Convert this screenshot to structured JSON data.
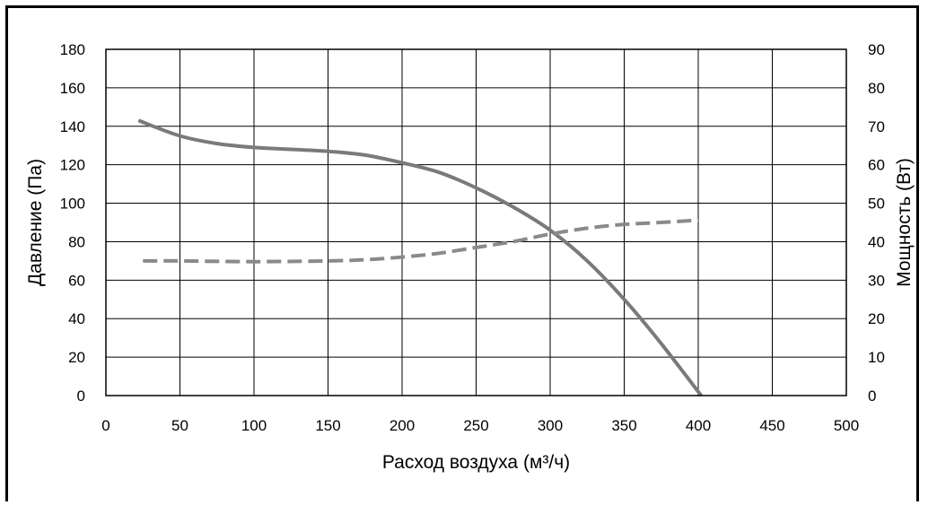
{
  "chart_data": {
    "type": "line",
    "xlabel": "Расход воздуха (м³/ч)",
    "ylabel_left": "Давление (Па)",
    "ylabel_right": "Мощность (Вт)",
    "xlim": [
      0,
      500
    ],
    "ylim_left": [
      0,
      180
    ],
    "ylim_right": [
      0,
      90
    ],
    "x_ticks": [
      0,
      50,
      100,
      150,
      200,
      250,
      300,
      350,
      400,
      450,
      500
    ],
    "y_ticks_left": [
      0,
      20,
      40,
      60,
      80,
      100,
      120,
      140,
      160,
      180
    ],
    "y_ticks_right": [
      0,
      10,
      20,
      30,
      40,
      50,
      60,
      70,
      80,
      90
    ],
    "grid": true,
    "series": [
      {
        "axis": "left",
        "style": "solid",
        "color": "#7a7a7a",
        "x": [
          22,
          50,
          75,
          100,
          125,
          150,
          175,
          200,
          225,
          250,
          275,
          300,
          325,
          350,
          375,
          402
        ],
        "y": [
          143,
          135,
          131,
          129,
          128,
          127,
          125,
          121,
          116,
          108,
          98,
          86,
          70,
          50,
          27,
          0
        ]
      },
      {
        "axis": "right",
        "style": "dashed",
        "color": "#8a8a8a",
        "x": [
          25,
          50,
          100,
          150,
          175,
          200,
          225,
          250,
          275,
          300,
          325,
          350,
          375,
          400
        ],
        "y": [
          35,
          35,
          34.8,
          35,
          35.3,
          36,
          37,
          38.5,
          40,
          42,
          43.5,
          44.5,
          45,
          45.6
        ]
      }
    ]
  }
}
